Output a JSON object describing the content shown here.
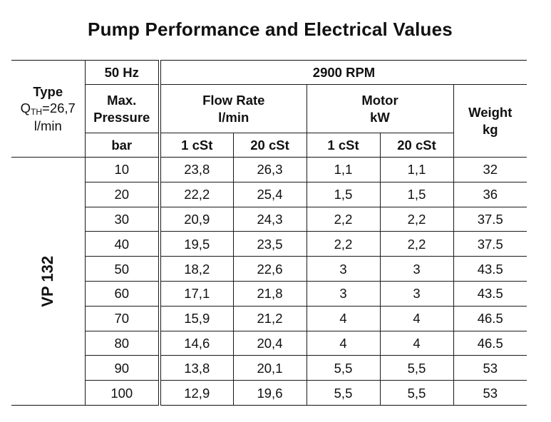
{
  "title": "Pump Performance and Electrical Values",
  "header": {
    "type_label": "Type",
    "qth_prefix": "Q",
    "qth_sub": "TH",
    "qth_value": "=26,7",
    "qth_unit": "l/min",
    "frequency": "50 Hz",
    "rpm": "2900 RPM",
    "max_pressure_line1": "Max.",
    "max_pressure_line2": "Pressure",
    "max_pressure_unit": "bar",
    "flow_rate_label": "Flow Rate",
    "flow_rate_unit": "l/min",
    "motor_label": "Motor",
    "motor_unit": "kW",
    "weight_label": "Weight",
    "weight_unit": "kg",
    "flow_1cst": "1 cSt",
    "flow_20cst": "20 cSt",
    "motor_1cst": "1 cSt",
    "motor_20cst": "20 cSt"
  },
  "model": "VP 132",
  "rows": [
    {
      "pressure": "10",
      "flow_1cst": "23,8",
      "flow_20cst": "26,3",
      "motor_1cst": "1,1",
      "motor_20cst": "1,1",
      "weight": "32"
    },
    {
      "pressure": "20",
      "flow_1cst": "22,2",
      "flow_20cst": "25,4",
      "motor_1cst": "1,5",
      "motor_20cst": "1,5",
      "weight": "36"
    },
    {
      "pressure": "30",
      "flow_1cst": "20,9",
      "flow_20cst": "24,3",
      "motor_1cst": "2,2",
      "motor_20cst": "2,2",
      "weight": "37.5"
    },
    {
      "pressure": "40",
      "flow_1cst": "19,5",
      "flow_20cst": "23,5",
      "motor_1cst": "2,2",
      "motor_20cst": "2,2",
      "weight": "37.5"
    },
    {
      "pressure": "50",
      "flow_1cst": "18,2",
      "flow_20cst": "22,6",
      "motor_1cst": "3",
      "motor_20cst": "3",
      "weight": "43.5"
    },
    {
      "pressure": "60",
      "flow_1cst": "17,1",
      "flow_20cst": "21,8",
      "motor_1cst": "3",
      "motor_20cst": "3",
      "weight": "43.5"
    },
    {
      "pressure": "70",
      "flow_1cst": "15,9",
      "flow_20cst": "21,2",
      "motor_1cst": "4",
      "motor_20cst": "4",
      "weight": "46.5"
    },
    {
      "pressure": "80",
      "flow_1cst": "14,6",
      "flow_20cst": "20,4",
      "motor_1cst": "4",
      "motor_20cst": "4",
      "weight": "46.5"
    },
    {
      "pressure": "90",
      "flow_1cst": "13,8",
      "flow_20cst": "20,1",
      "motor_1cst": "5,5",
      "motor_20cst": "5,5",
      "weight": "53"
    },
    {
      "pressure": "100",
      "flow_1cst": "12,9",
      "flow_20cst": "19,6",
      "motor_1cst": "5,5",
      "motor_20cst": "5,5",
      "weight": "53"
    }
  ]
}
